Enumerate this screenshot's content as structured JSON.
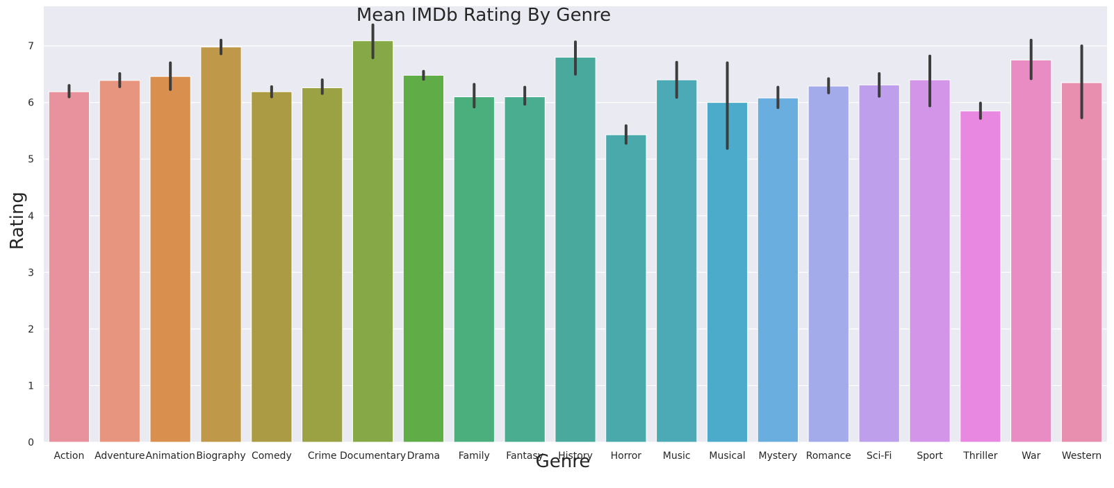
{
  "chart_data": {
    "type": "bar",
    "title": "Mean IMDb Rating By Genre",
    "xlabel": "Genre",
    "ylabel": "Rating",
    "ylim": [
      0,
      7.7
    ],
    "yticks": [
      0,
      1,
      2,
      3,
      4,
      5,
      6,
      7
    ],
    "grid": true,
    "categories": [
      "Action",
      "Adventure",
      "Animation",
      "Biography",
      "Comedy",
      "Crime",
      "Documentary",
      "Drama",
      "Family",
      "Fantasy",
      "History",
      "Horror",
      "Music",
      "Musical",
      "Mystery",
      "Romance",
      "Sci-Fi",
      "Sport",
      "Thriller",
      "War",
      "Western"
    ],
    "values": [
      6.19,
      6.39,
      6.46,
      6.98,
      6.19,
      6.26,
      7.09,
      6.48,
      6.1,
      6.1,
      6.8,
      5.43,
      6.4,
      6.0,
      6.08,
      6.29,
      6.31,
      6.4,
      5.85,
      6.75,
      6.35
    ],
    "error_low": [
      6.1,
      6.28,
      6.23,
      6.86,
      6.1,
      6.16,
      6.79,
      6.41,
      5.92,
      5.97,
      6.5,
      5.28,
      6.09,
      5.19,
      5.91,
      6.17,
      6.11,
      5.94,
      5.72,
      6.42,
      5.73
    ],
    "error_high": [
      6.3,
      6.51,
      6.7,
      7.1,
      6.28,
      6.4,
      7.37,
      6.55,
      6.32,
      6.27,
      7.07,
      5.59,
      6.71,
      6.7,
      6.27,
      6.42,
      6.51,
      6.82,
      5.99,
      7.1,
      7.0
    ],
    "colors": [
      "#e8929e",
      "#e8957f",
      "#d98f4d",
      "#c09849",
      "#ab9b45",
      "#9aa243",
      "#86a846",
      "#60ad48",
      "#4aaf7d",
      "#4aad90",
      "#4aa99d",
      "#4aa9aa",
      "#4caab7",
      "#4caacb",
      "#6aaee0",
      "#a3abeb",
      "#bd9fec",
      "#d295e8",
      "#e888e0",
      "#e88cc3",
      "#e88faf"
    ]
  }
}
